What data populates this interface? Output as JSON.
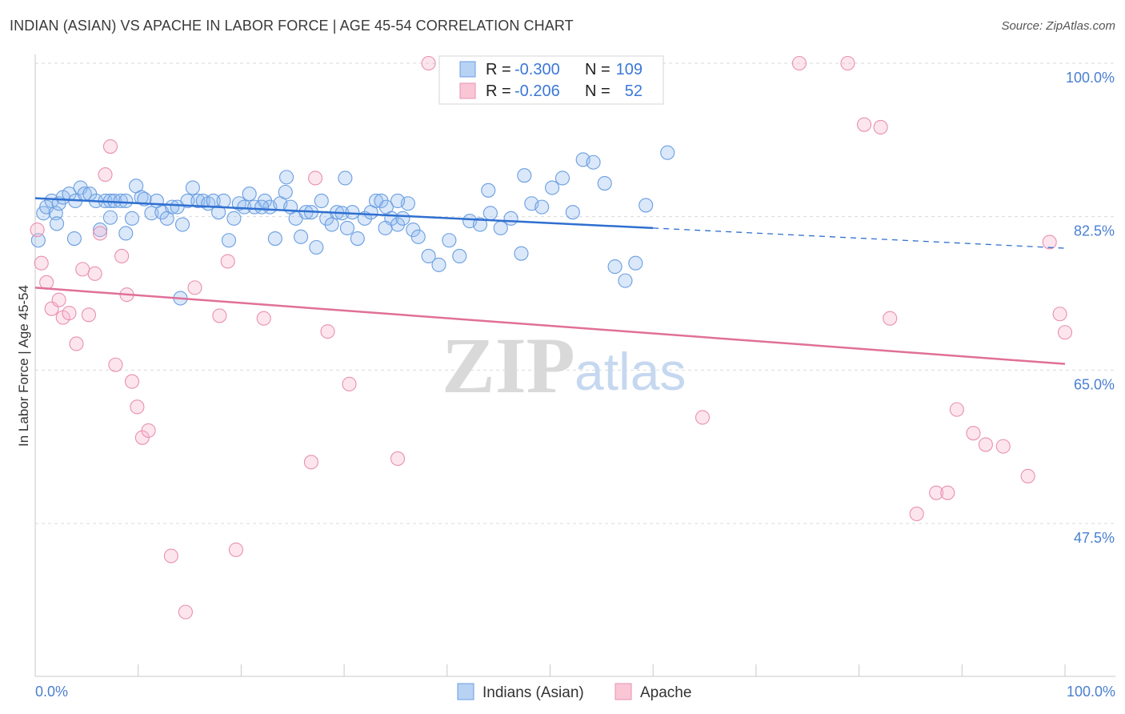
{
  "header": {
    "title": "INDIAN (ASIAN) VS APACHE IN LABOR FORCE | AGE 45-54 CORRELATION CHART",
    "source": "Source: ZipAtlas.com"
  },
  "watermark": {
    "zip": "ZIP",
    "atlas": "atlas"
  },
  "legend": {
    "rows": [
      {
        "r_label": "R =",
        "r_value": "-0.300",
        "n_label": "N =",
        "n_value": "109",
        "color": "#a8c8f0",
        "stroke": "#6a9ee0"
      },
      {
        "r_label": "R =",
        "r_value": "-0.206",
        "n_label": "N =",
        "n_value": "52",
        "color": "#f8bcd0",
        "stroke": "#e890b0"
      }
    ]
  },
  "bottom_legend": {
    "series1": "Indians (Asian)",
    "series2": "Apache"
  },
  "colors": {
    "blue_fill": "rgba(150,190,240,0.35)",
    "blue_stroke": "#6a9ee0",
    "blue_line": "#2f6fd0",
    "pink_fill": "rgba(248,180,205,0.35)",
    "pink_stroke": "#e890b0",
    "pink_line": "#e07098",
    "grid": "#d9d9d9",
    "tick_text": "#4a7fd1"
  },
  "chart_data": {
    "type": "scatter",
    "title": "INDIAN (ASIAN) VS APACHE IN LABOR FORCE | AGE 45-54 CORRELATION CHART",
    "xlabel": "",
    "ylabel": "In Labor Force | Age 45-54",
    "xlim": [
      0,
      100
    ],
    "ylim": [
      29,
      102
    ],
    "x_tick_labels": [
      "0.0%",
      "100.0%"
    ],
    "y_ticks": [
      47.5,
      65.0,
      82.5,
      100.0
    ],
    "y_tick_labels": [
      "47.5%",
      "65.0%",
      "82.5%",
      "100.0%"
    ],
    "grid": true,
    "legend_position": "top-center",
    "series": [
      {
        "name": "Indians (Asian)",
        "color": "#6a9ee0",
        "r": -0.3,
        "n": 109,
        "trend": {
          "x_start": 0,
          "y_start": 84.6,
          "x_solid_end": 60,
          "y_solid_end": 81.2,
          "x_dash_end": 100,
          "y_dash_end": 78.9
        },
        "x": [
          0.3,
          0.8,
          1.1,
          1.6,
          2.0,
          2.3,
          2.7,
          3.3,
          3.9,
          4.4,
          4.8,
          5.3,
          5.9,
          6.3,
          6.8,
          7.3,
          7.7,
          8.3,
          8.8,
          9.4,
          9.8,
          10.3,
          11.3,
          11.8,
          12.3,
          12.8,
          13.3,
          13.8,
          14.3,
          14.8,
          15.3,
          15.8,
          16.3,
          16.8,
          17.3,
          17.8,
          18.3,
          18.8,
          19.3,
          19.8,
          20.3,
          20.8,
          21.3,
          22.3,
          22.8,
          23.3,
          23.8,
          24.3,
          24.8,
          25.3,
          25.8,
          26.3,
          26.8,
          27.3,
          27.8,
          28.3,
          28.8,
          29.3,
          29.8,
          30.3,
          30.8,
          31.3,
          32.0,
          32.6,
          33.1,
          33.6,
          34.1,
          34.6,
          35.2,
          35.7,
          36.2,
          36.7,
          37.2,
          38.2,
          39.2,
          40.2,
          41.2,
          42.2,
          43.2,
          44.2,
          45.2,
          46.2,
          47.2,
          48.2,
          49.2,
          50.2,
          51.2,
          52.2,
          53.2,
          54.2,
          55.3,
          56.3,
          57.3,
          58.3,
          59.3,
          61.4,
          3.8,
          10.6,
          24.4,
          30.1,
          14.1,
          22.0,
          34.0,
          44.0,
          35.2,
          7.3,
          2.1,
          8.8,
          47.5
        ],
        "y": [
          79.8,
          82.9,
          83.6,
          84.3,
          82.9,
          84.0,
          84.7,
          85.1,
          84.3,
          85.8,
          85.1,
          85.1,
          84.3,
          81.0,
          84.3,
          84.3,
          84.3,
          84.3,
          84.3,
          82.3,
          86.0,
          84.7,
          82.9,
          84.3,
          83.0,
          82.3,
          83.6,
          83.6,
          81.6,
          84.3,
          85.8,
          84.3,
          84.3,
          84.0,
          84.3,
          83.0,
          84.3,
          79.8,
          82.3,
          84.0,
          83.6,
          85.1,
          83.6,
          84.3,
          83.6,
          80.0,
          84.0,
          85.3,
          83.6,
          82.3,
          80.2,
          83.0,
          83.0,
          79.0,
          84.3,
          82.3,
          81.6,
          83.0,
          82.9,
          81.2,
          83.0,
          80.0,
          82.3,
          83.0,
          84.3,
          84.3,
          83.6,
          82.3,
          81.6,
          82.3,
          84.0,
          81.0,
          80.2,
          78.0,
          77.0,
          79.8,
          78.0,
          82.0,
          81.6,
          82.9,
          81.2,
          82.3,
          78.3,
          84.0,
          83.6,
          85.8,
          86.9,
          83.0,
          89.0,
          88.7,
          86.3,
          76.8,
          75.2,
          77.2,
          83.8,
          89.8,
          80.0,
          84.5,
          87.0,
          86.9,
          73.2,
          83.6,
          81.2,
          85.5,
          84.3,
          82.4,
          81.7,
          80.6,
          87.2
        ],
        "points_count_note": ""
      },
      {
        "name": "Apache",
        "color": "#e890b0",
        "r": -0.206,
        "n": 52,
        "trend": {
          "x_start": 0,
          "y_start": 74.4,
          "x_end": 100,
          "y_end": 65.7
        },
        "x": [
          0.2,
          0.6,
          1.1,
          1.6,
          2.3,
          2.7,
          3.3,
          4.0,
          4.6,
          5.2,
          5.8,
          6.3,
          6.8,
          7.3,
          7.8,
          8.4,
          8.9,
          9.4,
          9.9,
          10.4,
          11.0,
          15.5,
          18.7,
          27.2,
          28.4,
          35.2,
          30.5,
          38.2,
          44.3,
          64.8,
          74.2,
          78.9,
          80.5,
          82.1,
          83.0,
          85.6,
          87.5,
          88.6,
          89.5,
          91.1,
          92.3,
          94.0,
          96.4,
          98.5,
          99.5,
          100.0,
          13.2,
          14.6,
          17.9,
          19.5,
          22.2,
          26.8
        ],
        "y": [
          81.0,
          77.2,
          75.0,
          72.0,
          73.0,
          71.0,
          71.5,
          68.0,
          76.5,
          71.3,
          76.0,
          80.6,
          87.3,
          90.5,
          65.6,
          78.0,
          73.6,
          63.7,
          60.8,
          57.3,
          58.1,
          74.4,
          77.4,
          86.9,
          69.4,
          54.9,
          63.4,
          100.0,
          100.0,
          59.6,
          100.0,
          100.0,
          93.0,
          92.7,
          70.9,
          48.6,
          51.0,
          51.0,
          60.5,
          57.8,
          56.5,
          56.3,
          52.9,
          79.6,
          71.4,
          69.3,
          43.8,
          37.4,
          71.2,
          44.5,
          70.9,
          54.5
        ],
        "points_count_note": ""
      }
    ]
  }
}
